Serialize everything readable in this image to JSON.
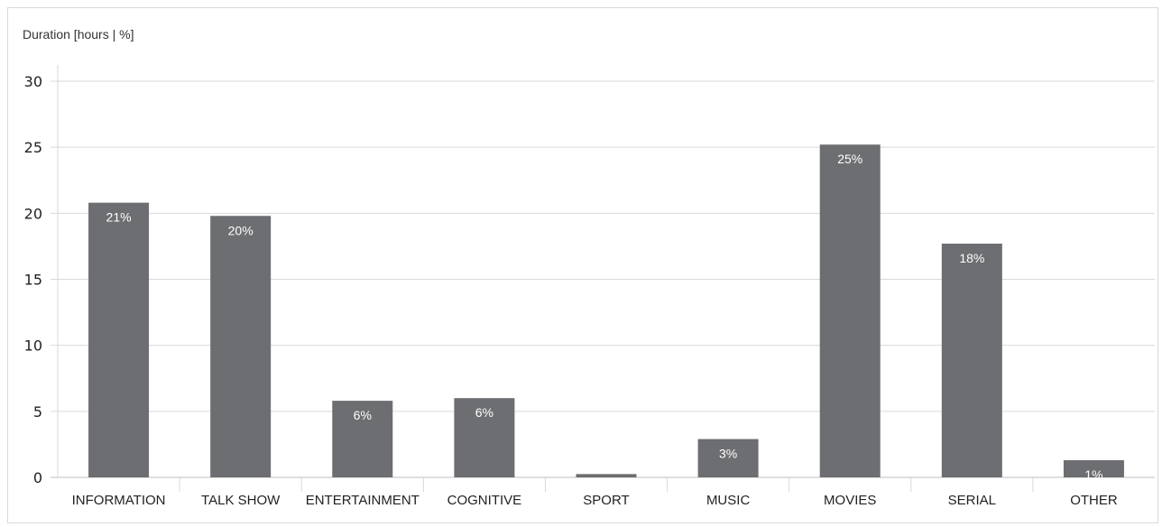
{
  "chart_data": {
    "type": "bar",
    "title": "",
    "ylabel": "Duration [hours | %]",
    "xlabel": "",
    "categories": [
      "INFORMATION",
      "TALK SHOW",
      "ENTERTAINMENT",
      "COGNITIVE",
      "SPORT",
      "MUSIC",
      "MOVIES",
      "SERIAL",
      "OTHER"
    ],
    "values": [
      20.8,
      19.8,
      5.8,
      6.0,
      0.25,
      2.9,
      25.2,
      17.7,
      1.3
    ],
    "data_labels": [
      "21%",
      "20%",
      "6%",
      "6%",
      "",
      "3%",
      "25%",
      "18%",
      "1%"
    ],
    "y_ticks": [
      "0",
      "5",
      "10",
      "15",
      "20",
      "25",
      "30"
    ],
    "ylim": [
      0,
      30
    ],
    "grid": true,
    "bar_color": "#6d6e71",
    "grid_color": "#d9d9d9",
    "label_color": "#ffffff"
  }
}
